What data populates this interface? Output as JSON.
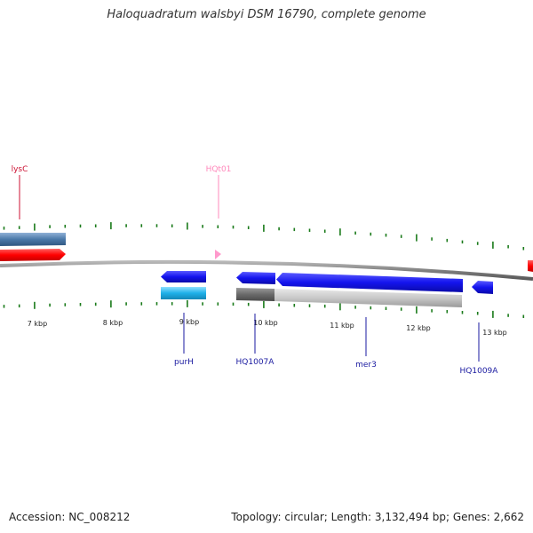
{
  "title": "Haloquadratum walsbyi DSM 16790, complete genome",
  "footer": {
    "accession": "Accession: NC_008212",
    "summary": "Topology: circular; Length: 3,132,494 bp; Genes: 2,662"
  },
  "colors": {
    "tick": "#1a7a1a",
    "backbone": "#808080",
    "forward_gene": "#4a78a8",
    "forward_cds": "#ff0000",
    "trna": "#ff99cc",
    "reverse_cds": "#1414ee",
    "reverse_gene": "#1eb0e8",
    "gene_label_top": "#cc1133",
    "trna_label": "#ff88bb",
    "gene_label_bottom": "#1a1aa0"
  },
  "scale_labels": [
    {
      "kbp": 7,
      "text": "7 kbp"
    },
    {
      "kbp": 8,
      "text": "8 kbp"
    },
    {
      "kbp": 9,
      "text": "9 kbp"
    },
    {
      "kbp": 10,
      "text": "10 kbp"
    },
    {
      "kbp": 11,
      "text": "11 kbp"
    },
    {
      "kbp": 12,
      "text": "12 kbp"
    },
    {
      "kbp": 13,
      "text": "13 kbp"
    }
  ],
  "top_labels": [
    {
      "id": "lysC",
      "text": "lysC",
      "type": "gene"
    },
    {
      "id": "HQt01",
      "text": "HQt01",
      "type": "trna"
    }
  ],
  "bottom_labels": [
    {
      "id": "purH",
      "text": "purH"
    },
    {
      "id": "HQ1007A",
      "text": "HQ1007A"
    },
    {
      "id": "mer3",
      "text": "mer3"
    },
    {
      "id": "HQ1009A",
      "text": "HQ1009A"
    }
  ]
}
